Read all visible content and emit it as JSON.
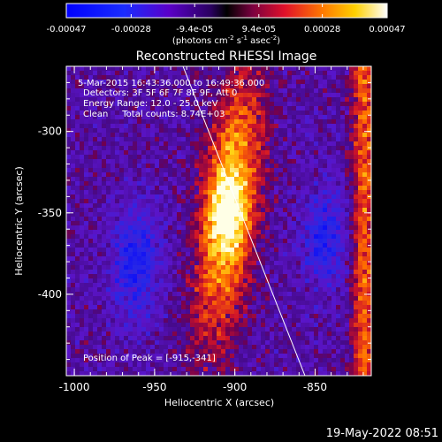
{
  "colorbar": {
    "ticks": [
      "-0.00047",
      "-0.00028",
      "-9.4e-05",
      "9.4e-05",
      "0.00028",
      "0.00047"
    ],
    "unit_label": "(photons cm",
    "unit_exp1": "-2",
    "unit_mid": " s",
    "unit_exp2": "-1",
    "unit_end": " asec",
    "unit_exp3": "-2",
    "unit_close": ")",
    "range": [
      -0.00047,
      0.00047
    ]
  },
  "title": "Reconstructed RHESSI Image",
  "annotations": {
    "time_range": "5-Mar-2015 16:43:36.000 to 16:49:36.000",
    "detectors": "Detectors: 3F 5F 6F 7F 8F 9F, Att 0",
    "energy_range": "Energy Range: 12.0 - 25.0 keV",
    "clean": "Clean     Total counts: 8.74E+03",
    "peak": "Position of Peak = [-915,-341]"
  },
  "axes": {
    "xlabel": "Heliocentric X (arcsec)",
    "ylabel": "Heliocentric Y (arcsec)",
    "xticks": [
      "-1000",
      "-950",
      "-900",
      "-850"
    ],
    "yticks": [
      "-300",
      "-350",
      "-400"
    ],
    "xrange": [
      -1005,
      -815
    ],
    "yrange": [
      -450,
      -260
    ]
  },
  "footer": {
    "timestamp": "19-May-2022 08:51"
  },
  "colors": {
    "background": "#000000",
    "foreground": "#ffffff"
  }
}
